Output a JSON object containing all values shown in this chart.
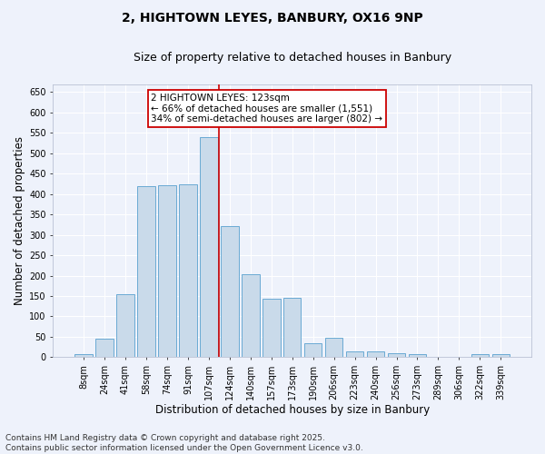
{
  "title_line1": "2, HIGHTOWN LEYES, BANBURY, OX16 9NP",
  "title_line2": "Size of property relative to detached houses in Banbury",
  "xlabel": "Distribution of detached houses by size in Banbury",
  "ylabel": "Number of detached properties",
  "categories": [
    "8sqm",
    "24sqm",
    "41sqm",
    "58sqm",
    "74sqm",
    "91sqm",
    "107sqm",
    "124sqm",
    "140sqm",
    "157sqm",
    "173sqm",
    "190sqm",
    "206sqm",
    "223sqm",
    "240sqm",
    "256sqm",
    "273sqm",
    "289sqm",
    "306sqm",
    "322sqm",
    "339sqm"
  ],
  "values": [
    8,
    45,
    155,
    420,
    422,
    425,
    540,
    322,
    203,
    143,
    145,
    35,
    48,
    15,
    13,
    10,
    8,
    0,
    0,
    7,
    7
  ],
  "bar_color": "#c9daea",
  "bar_edge_color": "#6aaad4",
  "ref_line_index": 6.5,
  "annotation_text": "2 HIGHTOWN LEYES: 123sqm\n← 66% of detached houses are smaller (1,551)\n34% of semi-detached houses are larger (802) →",
  "annotation_box_color": "#ffffff",
  "annotation_box_edge_color": "#cc0000",
  "footnote": "Contains HM Land Registry data © Crown copyright and database right 2025.\nContains public sector information licensed under the Open Government Licence v3.0.",
  "ylim": [
    0,
    670
  ],
  "yticks": [
    0,
    50,
    100,
    150,
    200,
    250,
    300,
    350,
    400,
    450,
    500,
    550,
    600,
    650
  ],
  "background_color": "#eef2fb",
  "grid_color": "#ffffff",
  "title_fontsize": 10,
  "subtitle_fontsize": 9,
  "axis_label_fontsize": 8.5,
  "tick_fontsize": 7,
  "annotation_fontsize": 7.5,
  "footnote_fontsize": 6.5
}
